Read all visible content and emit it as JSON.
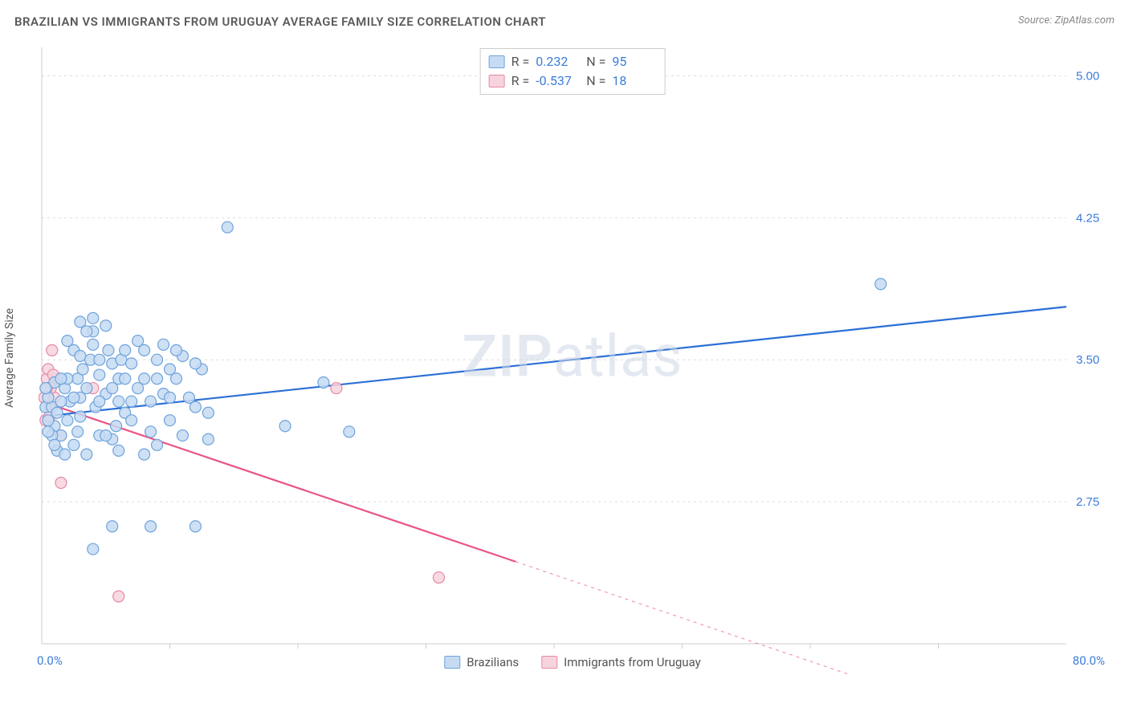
{
  "header": {
    "title": "BRAZILIAN VS IMMIGRANTS FROM URUGUAY AVERAGE FAMILY SIZE CORRELATION CHART",
    "source_prefix": "Source: ",
    "source_name": "ZipAtlas.com"
  },
  "watermark": {
    "zip": "ZIP",
    "atlas": "atlas"
  },
  "chart": {
    "type": "scatter-with-trend",
    "xmin": 0,
    "xmax": 80,
    "ymin": 2.0,
    "ymax": 5.15,
    "x_unit": "%",
    "xlabel_min": "0.0%",
    "xlabel_max": "80.0%",
    "ylabel": "Average Family Size",
    "y_ticks": [
      2.75,
      3.5,
      4.25,
      5.0
    ],
    "x_ticks_minor": [
      10,
      20,
      30,
      40,
      50,
      60,
      70
    ],
    "background_color": "#ffffff",
    "grid_color": "#dddddd",
    "axis_color": "#cccccc",
    "point_radius": 7,
    "point_stroke_width": 1.2,
    "trend_line_width": 2.2,
    "series": [
      {
        "name": "Brazilians",
        "fill": "#c6dbf2",
        "stroke": "#6ea3dd",
        "trend_color": "#2b6fd6",
        "trend": {
          "x0": 0,
          "y0": 3.2,
          "x1": 80,
          "y1": 3.78,
          "solid_until": 80
        },
        "stats": {
          "R": "0.232",
          "N": "95"
        },
        "points": [
          [
            0.3,
            3.25
          ],
          [
            0.8,
            3.25
          ],
          [
            1.0,
            3.15
          ],
          [
            0.5,
            3.3
          ],
          [
            1.2,
            3.22
          ],
          [
            1.5,
            3.1
          ],
          [
            1.8,
            3.35
          ],
          [
            2.0,
            3.18
          ],
          [
            2.2,
            3.28
          ],
          [
            2.5,
            3.05
          ],
          [
            2.0,
            3.6
          ],
          [
            2.5,
            3.55
          ],
          [
            2.8,
            3.4
          ],
          [
            3.0,
            3.3
          ],
          [
            3.0,
            3.52
          ],
          [
            3.2,
            3.45
          ],
          [
            3.5,
            3.35
          ],
          [
            3.8,
            3.5
          ],
          [
            4.0,
            3.58
          ],
          [
            4.2,
            3.25
          ],
          [
            3.0,
            3.7
          ],
          [
            4.0,
            3.65
          ],
          [
            4.5,
            3.42
          ],
          [
            5.0,
            3.32
          ],
          [
            5.2,
            3.55
          ],
          [
            5.5,
            3.48
          ],
          [
            5.8,
            3.15
          ],
          [
            6.0,
            3.4
          ],
          [
            6.2,
            3.5
          ],
          [
            6.5,
            3.55
          ],
          [
            5.5,
            3.08
          ],
          [
            4.5,
            3.1
          ],
          [
            3.5,
            3.0
          ],
          [
            2.8,
            3.12
          ],
          [
            1.5,
            3.28
          ],
          [
            6.5,
            3.22
          ],
          [
            7.0,
            3.18
          ],
          [
            7.5,
            3.35
          ],
          [
            8.0,
            3.4
          ],
          [
            8.5,
            3.28
          ],
          [
            7.0,
            3.48
          ],
          [
            8.0,
            3.55
          ],
          [
            9.0,
            3.5
          ],
          [
            9.5,
            3.32
          ],
          [
            10.0,
            3.45
          ],
          [
            8.5,
            3.12
          ],
          [
            9.0,
            3.05
          ],
          [
            10.5,
            3.4
          ],
          [
            11.0,
            3.52
          ],
          [
            11.5,
            3.3
          ],
          [
            10.0,
            3.18
          ],
          [
            12.0,
            3.25
          ],
          [
            12.5,
            3.45
          ],
          [
            13.0,
            3.08
          ],
          [
            8.0,
            3.0
          ],
          [
            7.5,
            3.6
          ],
          [
            9.5,
            3.58
          ],
          [
            10.5,
            3.55
          ],
          [
            6.0,
            3.02
          ],
          [
            12.0,
            3.48
          ],
          [
            3.5,
            3.65
          ],
          [
            4.0,
            3.72
          ],
          [
            5.0,
            3.68
          ],
          [
            2.0,
            3.4
          ],
          [
            1.0,
            3.38
          ],
          [
            0.5,
            3.18
          ],
          [
            0.8,
            3.1
          ],
          [
            1.2,
            3.02
          ],
          [
            1.8,
            3.0
          ],
          [
            2.5,
            3.3
          ],
          [
            1.5,
            3.4
          ],
          [
            0.3,
            3.35
          ],
          [
            3.0,
            3.2
          ],
          [
            4.5,
            3.28
          ],
          [
            5.0,
            3.1
          ],
          [
            5.5,
            3.35
          ],
          [
            6.5,
            3.4
          ],
          [
            7.0,
            3.28
          ],
          [
            0.5,
            3.12
          ],
          [
            1.0,
            3.05
          ],
          [
            14.5,
            4.2
          ],
          [
            19.0,
            3.15
          ],
          [
            22.0,
            3.38
          ],
          [
            24.0,
            3.12
          ],
          [
            13.0,
            3.22
          ],
          [
            5.5,
            2.62
          ],
          [
            8.5,
            2.62
          ],
          [
            4.0,
            2.5
          ],
          [
            12.0,
            2.62
          ],
          [
            65.5,
            3.9
          ],
          [
            9.0,
            3.4
          ],
          [
            10.0,
            3.3
          ],
          [
            11.0,
            3.1
          ],
          [
            6.0,
            3.28
          ],
          [
            4.5,
            3.5
          ]
        ]
      },
      {
        "name": "Immigrants from Uruguay",
        "fill": "#f6d3dd",
        "stroke": "#e68aa4",
        "trend_color": "#e95585",
        "trend": {
          "x0": 0,
          "y0": 3.28,
          "x1": 80,
          "y1": 1.45,
          "solid_until": 37
        },
        "stats": {
          "R": "-0.537",
          "N": "18"
        },
        "points": [
          [
            0.2,
            3.3
          ],
          [
            0.4,
            3.4
          ],
          [
            0.6,
            3.25
          ],
          [
            0.5,
            3.45
          ],
          [
            0.8,
            3.55
          ],
          [
            0.3,
            3.18
          ],
          [
            1.0,
            3.3
          ],
          [
            1.2,
            3.4
          ],
          [
            0.7,
            3.35
          ],
          [
            1.5,
            3.1
          ],
          [
            1.5,
            2.85
          ],
          [
            0.4,
            3.35
          ],
          [
            0.6,
            3.2
          ],
          [
            4.0,
            3.35
          ],
          [
            0.9,
            3.42
          ],
          [
            23.0,
            3.35
          ],
          [
            6.0,
            2.25
          ],
          [
            31.0,
            2.35
          ]
        ]
      }
    ]
  },
  "stats_box": {
    "R_label": "R =",
    "N_label": "N ="
  },
  "legend": {
    "s1": "Brazilians",
    "s2": "Immigrants from Uruguay"
  }
}
